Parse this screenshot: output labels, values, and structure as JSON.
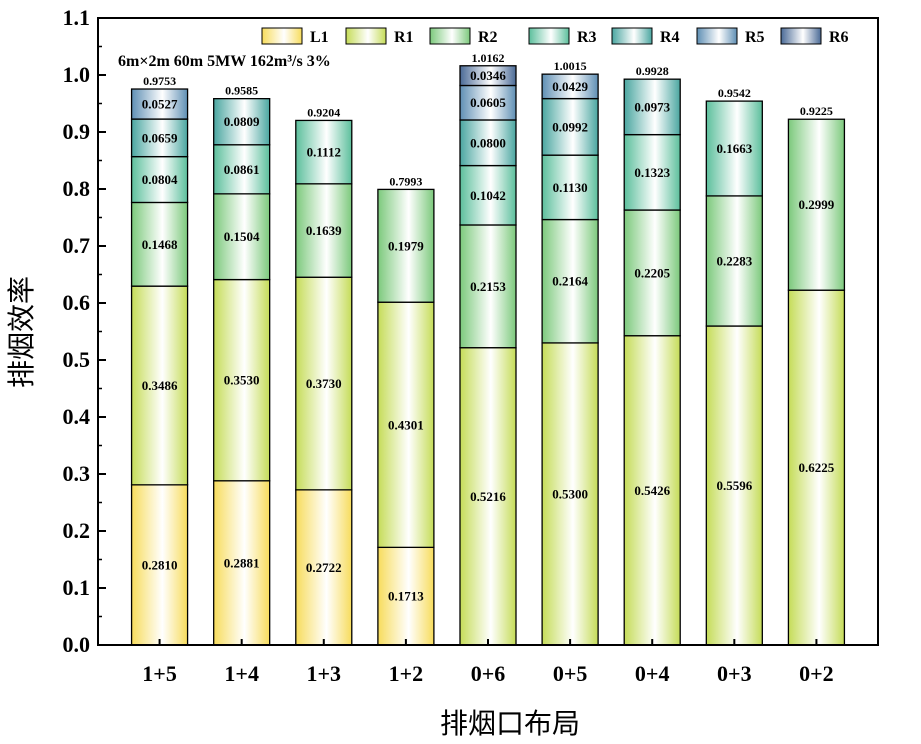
{
  "chart_data": {
    "type": "bar",
    "stacked": true,
    "annotation": "6m×2m  60m  5MW 162m³/s  3%",
    "xlabel": "排烟口布局",
    "ylabel": "排烟效率",
    "ylim": [
      0,
      1.1
    ],
    "yticks": [
      "0.0",
      "0.1",
      "0.2",
      "0.3",
      "0.4",
      "0.5",
      "0.6",
      "0.7",
      "0.8",
      "0.9",
      "1.0",
      "1.1"
    ],
    "categories": [
      "1+5",
      "1+4",
      "1+3",
      "1+2",
      "0+6",
      "0+5",
      "0+4",
      "0+3",
      "0+2"
    ],
    "legend_position": "top-right",
    "series": [
      {
        "name": "L1",
        "color": "#f7dc5c",
        "values": [
          0.281,
          0.2881,
          0.2722,
          0.1713,
          null,
          null,
          null,
          null,
          null
        ]
      },
      {
        "name": "R1",
        "color": "#c5dc58",
        "values": [
          0.3486,
          0.353,
          0.373,
          0.4301,
          0.5216,
          0.53,
          0.5426,
          0.5596,
          0.6225
        ]
      },
      {
        "name": "R2",
        "color": "#7cc97c",
        "values": [
          0.1468,
          0.1504,
          0.1639,
          0.1979,
          0.2153,
          0.2164,
          0.2205,
          0.2283,
          0.2999
        ]
      },
      {
        "name": "R3",
        "color": "#5cbf9c",
        "values": [
          0.0804,
          0.0861,
          0.1112,
          null,
          0.1042,
          0.113,
          0.1323,
          0.1663,
          null
        ]
      },
      {
        "name": "R4",
        "color": "#4aa6a0",
        "values": [
          0.0659,
          0.0809,
          null,
          null,
          0.08,
          0.0992,
          0.0973,
          null,
          null
        ]
      },
      {
        "name": "R5",
        "color": "#5f8fb4",
        "values": [
          0.0527,
          null,
          null,
          null,
          0.0605,
          0.0429,
          null,
          null,
          null
        ]
      },
      {
        "name": "R6",
        "color": "#4a6a96",
        "values": [
          null,
          null,
          null,
          null,
          0.0346,
          null,
          null,
          null,
          null
        ]
      }
    ],
    "totals": [
      "0.9753",
      "0.9585",
      "0.9204",
      "0.7993",
      "1.0162",
      "1.0015",
      "0.9928",
      "0.9542",
      "0.9225"
    ]
  }
}
